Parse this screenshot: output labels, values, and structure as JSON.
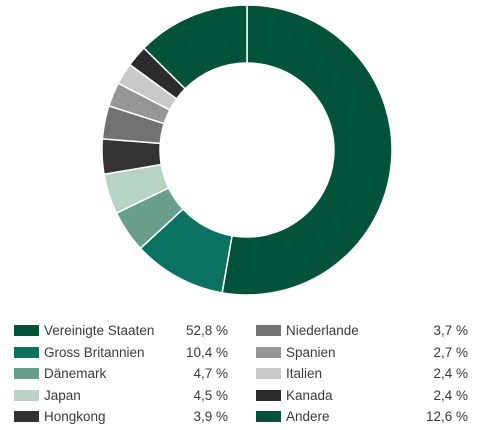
{
  "chart_data": {
    "type": "pie",
    "variant": "donut",
    "start": "top, clockwise",
    "title": "",
    "legend_position": "bottom",
    "slices": [
      {
        "label": "Vereinigte Staaten",
        "value": 52.8,
        "value_text": "52,8 %",
        "color": "#005239"
      },
      {
        "label": "Gross Britannien",
        "value": 10.4,
        "value_text": "10,4 %",
        "color": "#0b7262"
      },
      {
        "label": "Dänemark",
        "value": 4.7,
        "value_text": "4,7 %",
        "color": "#6a9e8c"
      },
      {
        "label": "Japan",
        "value": 4.5,
        "value_text": "4,5 %",
        "color": "#b6d3c6"
      },
      {
        "label": "Hongkong",
        "value": 3.9,
        "value_text": "3,9 %",
        "color": "#333333"
      },
      {
        "label": "Niederlande",
        "value": 3.7,
        "value_text": "3,7 %",
        "color": "#727272"
      },
      {
        "label": "Spanien",
        "value": 2.7,
        "value_text": "2,7 %",
        "color": "#969696"
      },
      {
        "label": "Italien",
        "value": 2.4,
        "value_text": "2,4 %",
        "color": "#c9c9c9"
      },
      {
        "label": "Kanada",
        "value": 2.4,
        "value_text": "2,4 %",
        "color": "#2b2b2b"
      },
      {
        "label": "Andere",
        "value": 12.6,
        "value_text": "12,6 %",
        "color": "#005239"
      }
    ]
  }
}
